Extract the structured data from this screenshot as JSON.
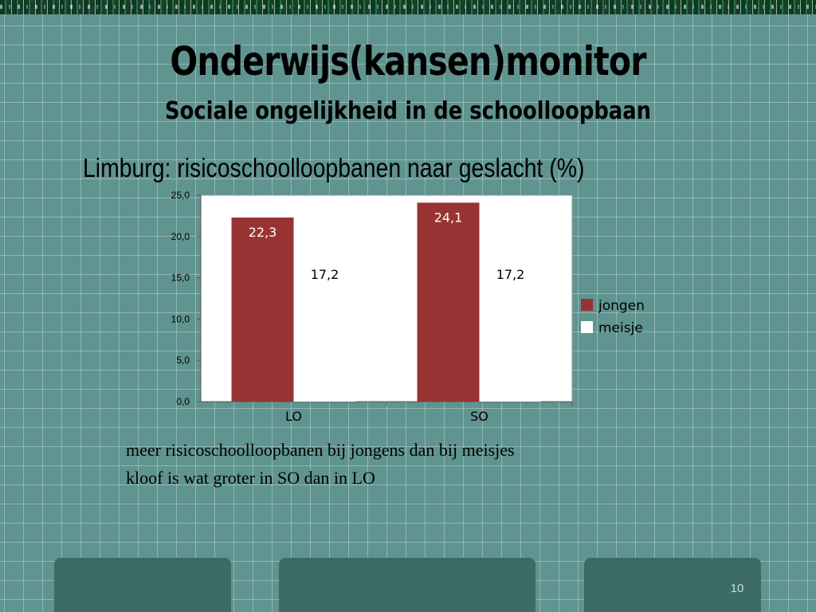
{
  "slide": {
    "title": "Onderwijs(kansen)monitor",
    "subtitle": "Sociale ongelijkheid in de schoolloopbaan",
    "chart_heading": "Limburg: risicoschoolloopbanen naar geslacht (%)",
    "notes": [
      "meer risicoschoolloopbanen bij jongens dan bij meisjes",
      "kloof is wat groter in SO dan in LO"
    ],
    "page_number": "10"
  },
  "chart_data": {
    "type": "bar",
    "title": "",
    "xlabel": "",
    "ylabel": "",
    "categories": [
      "LO",
      "SO"
    ],
    "series": [
      {
        "name": "jongen",
        "values": [
          22.3,
          24.1
        ],
        "labels": [
          "22,3",
          "24,1"
        ],
        "color": "#993333"
      },
      {
        "name": "meisje",
        "values": [
          17.2,
          17.2
        ],
        "labels": [
          "17,2",
          "17,2"
        ],
        "color": "#ffffff"
      }
    ],
    "ylim": [
      0,
      25
    ],
    "yticks": [
      0,
      5,
      10,
      15,
      20,
      25
    ],
    "ytick_labels": [
      "0,0",
      "5,0",
      "10,0",
      "15,0",
      "20,0",
      "25,0"
    ],
    "grid": false,
    "legend_position": "right",
    "plot_background": "#ffffff"
  }
}
